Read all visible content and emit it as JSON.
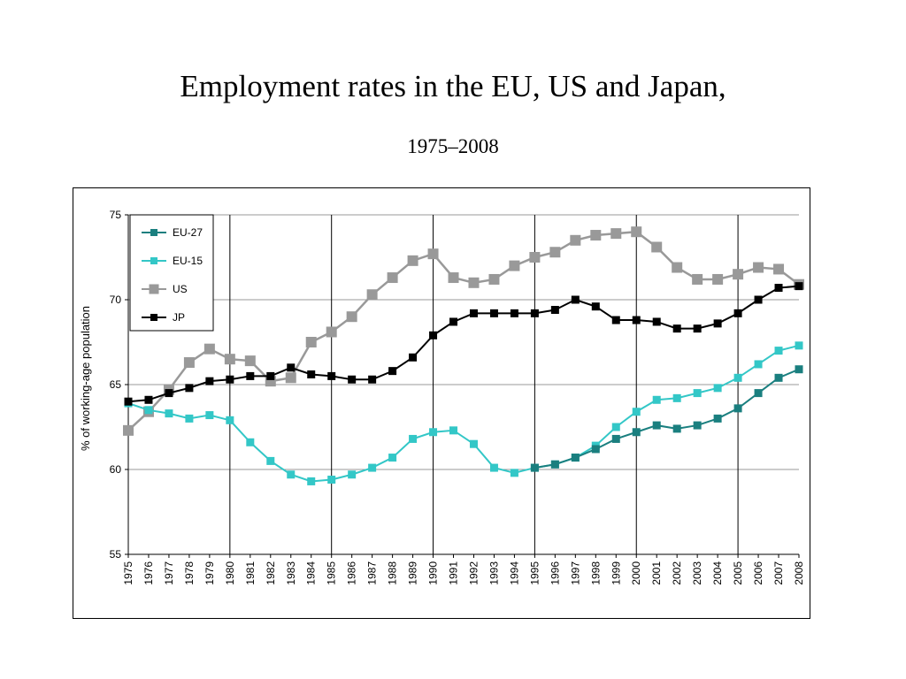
{
  "slide": {
    "title": "Employment rates in the EU, US and Japan,",
    "subtitle": "1975–2008"
  },
  "chart_data": {
    "type": "line",
    "title": "Employment rates in the EU, US and Japan,",
    "subtitle": "1975–2008",
    "xlabel": "",
    "ylabel": "% of working-age population",
    "ylim": [
      55,
      75
    ],
    "yticks": [
      55,
      60,
      65,
      70,
      75
    ],
    "grid": "horizontal gridlines at y ticks; vertical lines every 5 years",
    "legend_position": "top-left",
    "x": [
      "1975",
      "1976",
      "1977",
      "1978",
      "1979",
      "1980",
      "1981",
      "1982",
      "1983",
      "1984",
      "1985",
      "1986",
      "1987",
      "1988",
      "1989",
      "1990",
      "1991",
      "1992",
      "1993",
      "1994",
      "1995",
      "1996",
      "1997",
      "1998",
      "1999",
      "2000",
      "2001",
      "2002",
      "2003",
      "2004",
      "2005",
      "2006",
      "2007",
      "2008"
    ],
    "series": [
      {
        "name": "EU-27",
        "color": "#1a7f7f",
        "marker": "square",
        "values": [
          null,
          null,
          null,
          null,
          null,
          null,
          null,
          null,
          null,
          null,
          null,
          null,
          null,
          null,
          null,
          null,
          null,
          null,
          null,
          null,
          60.1,
          60.3,
          60.7,
          61.2,
          61.8,
          62.2,
          62.6,
          62.4,
          62.6,
          63.0,
          63.6,
          64.5,
          65.4,
          65.9
        ]
      },
      {
        "name": "EU-15",
        "color": "#33c7c7",
        "marker": "square",
        "values": [
          63.9,
          63.5,
          63.3,
          63.0,
          63.2,
          62.9,
          61.6,
          60.5,
          59.7,
          59.3,
          59.4,
          59.7,
          60.1,
          60.7,
          61.8,
          62.2,
          62.3,
          61.5,
          60.1,
          59.8,
          60.1,
          60.3,
          60.7,
          61.4,
          62.5,
          63.4,
          64.1,
          64.2,
          64.5,
          64.8,
          65.4,
          66.2,
          67.0,
          67.3
        ]
      },
      {
        "name": "US",
        "color": "#999999",
        "marker": "square",
        "values": [
          62.3,
          63.4,
          64.7,
          66.3,
          67.1,
          66.5,
          66.4,
          65.2,
          65.4,
          67.5,
          68.1,
          69.0,
          70.3,
          71.3,
          72.3,
          72.7,
          71.3,
          71.0,
          71.2,
          72.0,
          72.5,
          72.8,
          73.5,
          73.8,
          73.9,
          74.0,
          73.1,
          71.9,
          71.2,
          71.2,
          71.5,
          71.9,
          71.8,
          70.9
        ]
      },
      {
        "name": "JP",
        "color": "#000000",
        "marker": "square",
        "values": [
          64.0,
          64.1,
          64.5,
          64.8,
          65.2,
          65.3,
          65.5,
          65.5,
          66.0,
          65.6,
          65.5,
          65.3,
          65.3,
          65.8,
          66.6,
          67.9,
          68.7,
          69.2,
          69.2,
          69.2,
          69.2,
          69.4,
          70.0,
          69.6,
          68.8,
          68.8,
          68.7,
          68.3,
          68.3,
          68.6,
          69.2,
          70.0,
          70.7,
          70.8
        ]
      }
    ]
  }
}
